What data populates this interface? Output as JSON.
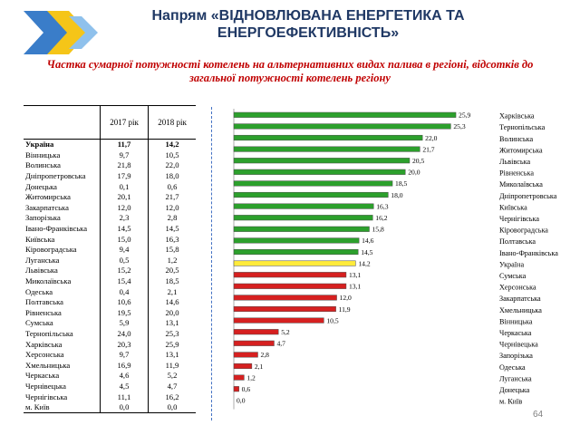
{
  "title": "Напрям «ВІДНОВЛЮВАНА ЕНЕРГЕТИКА ТА ЕНЕРГОЕФЕКТИВНІСТЬ»",
  "subtitle": "Частка сумарної потужності котелень на альтернативних видах палива в регіоні, відсотків до загальної потужності котелень регіону",
  "page_number": "64",
  "colors": {
    "title": "#1f3864",
    "subtitle": "#c00000",
    "above_avg": "#2ca02c",
    "average": "#ffeb3b",
    "below_avg": "#d62020",
    "logo_blue": "#3a7dc9",
    "logo_yellow": "#f5c518"
  },
  "table": {
    "headers": [
      "",
      "2017 рік",
      "2018 рік"
    ],
    "rows": [
      [
        "Україна",
        "11,7",
        "14,2"
      ],
      [
        "Вінницька",
        "9,7",
        "10,5"
      ],
      [
        "Волинська",
        "21,8",
        "22,0"
      ],
      [
        "Дніпропетровська",
        "17,9",
        "18,0"
      ],
      [
        "Донецька",
        "0,1",
        "0,6"
      ],
      [
        "Житомирська",
        "20,1",
        "21,7"
      ],
      [
        "Закарпатська",
        "12,0",
        "12,0"
      ],
      [
        "Запорізька",
        "2,3",
        "2,8"
      ],
      [
        "Івано-Франківська",
        "14,5",
        "14,5"
      ],
      [
        "Київська",
        "15,0",
        "16,3"
      ],
      [
        "Кіровоградська",
        "9,4",
        "15,8"
      ],
      [
        "Луганська",
        "0,5",
        "1,2"
      ],
      [
        "Львівська",
        "15,2",
        "20,5"
      ],
      [
        "Миколаївська",
        "15,4",
        "18,5"
      ],
      [
        "Одеська",
        "0,4",
        "2,1"
      ],
      [
        "Полтавська",
        "10,6",
        "14,6"
      ],
      [
        "Рівненська",
        "19,5",
        "20,0"
      ],
      [
        "Сумська",
        "5,9",
        "13,1"
      ],
      [
        "Тернопільська",
        "24,0",
        "25,3"
      ],
      [
        "Харківська",
        "20,3",
        "25,9"
      ],
      [
        "Херсонська",
        "9,7",
        "13,1"
      ],
      [
        "Хмельницька",
        "16,9",
        "11,9"
      ],
      [
        "Черкаська",
        "4,6",
        "5,2"
      ],
      [
        "Чернівецька",
        "4,5",
        "4,7"
      ],
      [
        "Чернігівська",
        "11,1",
        "16,2"
      ],
      [
        "м. Київ",
        "0,0",
        "0,0"
      ]
    ]
  },
  "chart_data": {
    "type": "bar",
    "orientation": "horizontal",
    "categories": [
      "Харківська",
      "Тернопільська",
      "Волинська",
      "Житомирська",
      "Львівська",
      "Рівненська",
      "Миколаївська",
      "Дніпропетровська",
      "Київська",
      "Чернігівська",
      "Кіровоградська",
      "Полтавська",
      "Івано-Франківська",
      "Україна",
      "Сумська",
      "Херсонська",
      "Закарпатська",
      "Хмельницька",
      "Вінницька",
      "Черкаська",
      "Чернівецька",
      "Запорізька",
      "Одеська",
      "Луганська",
      "Донецька",
      "м. Київ"
    ],
    "values": [
      25.9,
      25.3,
      22.0,
      21.7,
      20.5,
      20.0,
      18.5,
      18.0,
      16.3,
      16.2,
      15.8,
      14.6,
      14.5,
      14.2,
      13.1,
      13.1,
      12.0,
      11.9,
      10.5,
      5.2,
      4.7,
      2.8,
      2.1,
      1.2,
      0.6,
      0.0
    ],
    "value_labels": [
      "25,9",
      "25,3",
      "22,0",
      "21,7",
      "20,5",
      "20,0",
      "18,5",
      "18,0",
      "16,3",
      "16,2",
      "15,8",
      "14,6",
      "14,5",
      "14,2",
      "13,1",
      "13,1",
      "12,0",
      "11,9",
      "10,5",
      "5,2",
      "4,7",
      "2,8",
      "2,1",
      "1,2",
      "0,6",
      "0,0"
    ],
    "reference_category": "Україна",
    "xlim": [
      0,
      26
    ],
    "grid": false,
    "legend": "none"
  }
}
